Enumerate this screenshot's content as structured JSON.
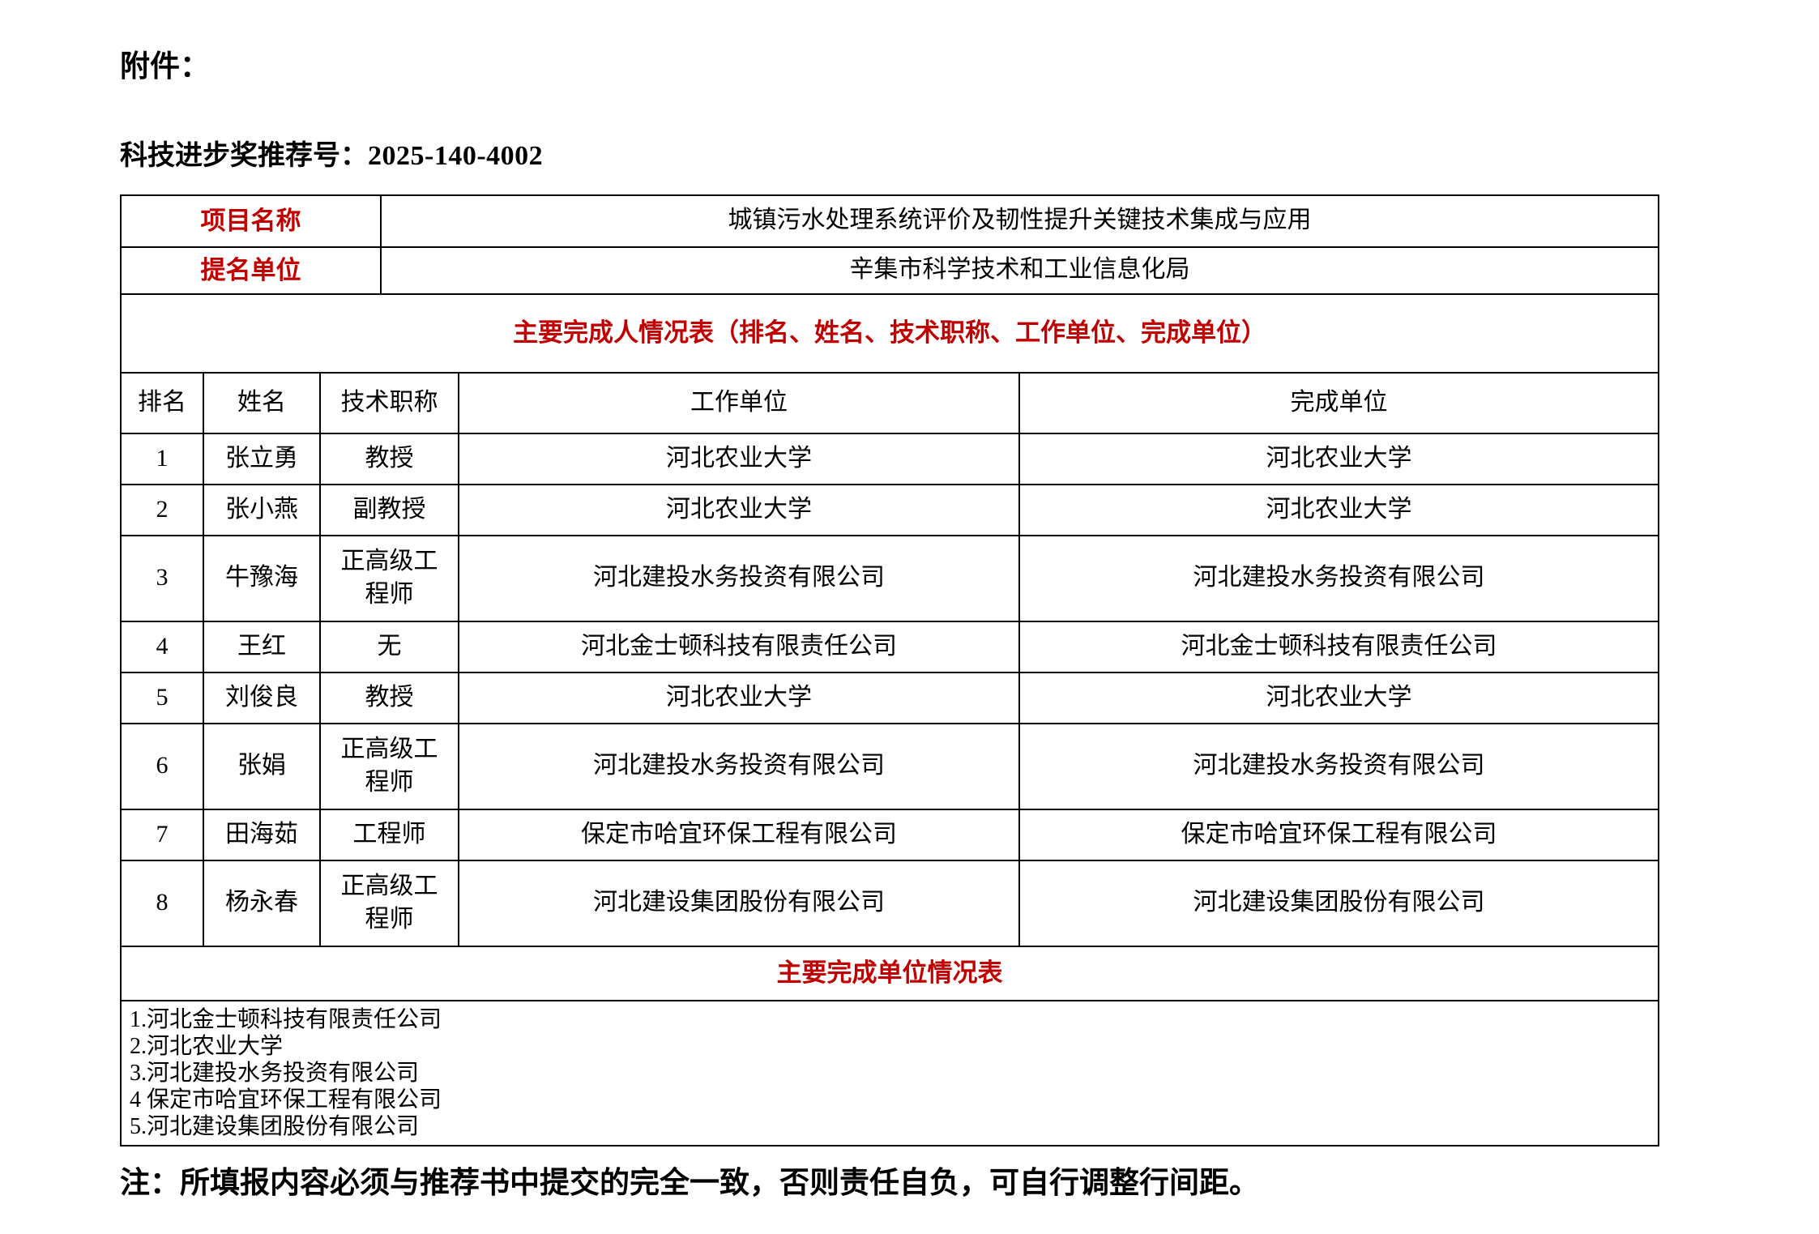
{
  "page": {
    "attachment_label": "附件：",
    "recommendation_label": "科技进步奖推荐号：",
    "recommendation_number": "2025-140-4002",
    "footer_note": "注：所填报内容必须与推荐书中提交的完全一致，否则责任自负，可自行调整行间距。"
  },
  "colors": {
    "accent_red": "#c00000",
    "border": "#000000"
  },
  "info": {
    "project_name_label": "项目名称",
    "project_name": "城镇污水处理系统评价及韧性提升关键技术集成与应用",
    "nominating_unit_label": "提名单位",
    "nominating_unit": "辛集市科学技术和工业信息化局"
  },
  "completers_table": {
    "title": "主要完成人情况表（排名、姓名、技术职称、工作单位、完成单位）",
    "columns": [
      "排名",
      "姓名",
      "技术职称",
      "工作单位",
      "完成单位"
    ],
    "rows": [
      {
        "rank": "1",
        "name": "张立勇",
        "title": "教授",
        "work_unit": "河北农业大学",
        "completion_unit": "河北农业大学"
      },
      {
        "rank": "2",
        "name": "张小燕",
        "title": "副教授",
        "work_unit": "河北农业大学",
        "completion_unit": "河北农业大学"
      },
      {
        "rank": "3",
        "name": "牛豫海",
        "title": "正高级工程师",
        "work_unit": "河北建投水务投资有限公司",
        "completion_unit": "河北建投水务投资有限公司"
      },
      {
        "rank": "4",
        "name": "王红",
        "title": "无",
        "work_unit": "河北金士顿科技有限责任公司",
        "completion_unit": "河北金士顿科技有限责任公司"
      },
      {
        "rank": "5",
        "name": "刘俊良",
        "title": "教授",
        "work_unit": "河北农业大学",
        "completion_unit": "河北农业大学"
      },
      {
        "rank": "6",
        "name": "张娟",
        "title": "正高级工程师",
        "work_unit": "河北建投水务投资有限公司",
        "completion_unit": "河北建投水务投资有限公司"
      },
      {
        "rank": "7",
        "name": "田海茹",
        "title": "工程师",
        "work_unit": "保定市哈宜环保工程有限公司",
        "completion_unit": "保定市哈宜环保工程有限公司"
      },
      {
        "rank": "8",
        "name": "杨永春",
        "title": "正高级工程师",
        "work_unit": "河北建设集团股份有限公司",
        "completion_unit": "河北建设集团股份有限公司"
      }
    ]
  },
  "units_table": {
    "title": "主要完成单位情况表",
    "items": [
      "1.河北金士顿科技有限责任公司",
      "2.河北农业大学",
      "3.河北建投水务投资有限公司",
      "4 保定市哈宜环保工程有限公司",
      "5.河北建设集团股份有限公司"
    ]
  }
}
